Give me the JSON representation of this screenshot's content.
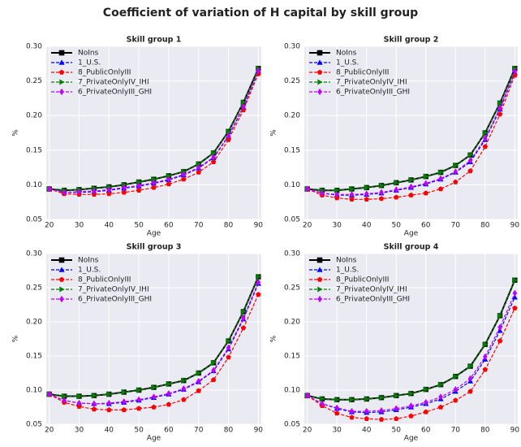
{
  "title": "Coefficient of variation of H capital by skill group",
  "chart_data": [
    {
      "type": "line",
      "title": "Skill group 1",
      "x_label": "Age",
      "y_label": "%",
      "x": [
        20,
        25,
        30,
        35,
        40,
        45,
        50,
        55,
        60,
        65,
        70,
        75,
        80,
        85,
        90
      ],
      "xlim": [
        19,
        91
      ],
      "xticks": [
        20,
        30,
        40,
        50,
        60,
        70,
        80,
        90
      ],
      "ylim": [
        0.05,
        0.3
      ],
      "yticks": [
        0.05,
        {
          "value": 0.1,
          "label": "0.10"
        },
        0.15,
        {
          "value": 0.2,
          "label": "0.20"
        },
        0.25,
        {
          "value": 0.3,
          "label": "0.30"
        }
      ],
      "grid": true,
      "legend": "upper left",
      "series": [
        {
          "name": "NoIns",
          "color": "#000000",
          "marker": "square",
          "linestyle": "solid",
          "values": [
            0.094,
            0.092,
            0.093,
            0.095,
            0.097,
            0.1,
            0.104,
            0.108,
            0.113,
            0.119,
            0.13,
            0.146,
            0.177,
            0.219,
            0.268
          ]
        },
        {
          "name": "1_U.S.",
          "color": "#0000ff",
          "marker": "triangle-up",
          "linestyle": "dashed",
          "values": [
            0.094,
            0.089,
            0.089,
            0.09,
            0.092,
            0.095,
            0.098,
            0.102,
            0.107,
            0.114,
            0.124,
            0.139,
            0.17,
            0.212,
            0.264
          ]
        },
        {
          "name": "8_PublicOnlyIII",
          "color": "#ff0000",
          "marker": "pentagon",
          "linestyle": "dashed",
          "values": [
            0.094,
            0.087,
            0.086,
            0.086,
            0.087,
            0.089,
            0.092,
            0.096,
            0.101,
            0.108,
            0.118,
            0.133,
            0.165,
            0.208,
            0.26
          ]
        },
        {
          "name": "7_PrivateOnlyIV_IHI",
          "color": "#008000",
          "marker": "triangle-right",
          "linestyle": "dashed",
          "values": [
            0.094,
            0.092,
            0.093,
            0.095,
            0.097,
            0.1,
            0.104,
            0.108,
            0.113,
            0.119,
            0.13,
            0.146,
            0.177,
            0.219,
            0.268
          ]
        },
        {
          "name": "6_PrivateOnlyIII_GHI",
          "color": "#bf00ff",
          "marker": "diamond",
          "linestyle": "dashed",
          "values": [
            0.094,
            0.089,
            0.09,
            0.091,
            0.093,
            0.096,
            0.099,
            0.103,
            0.108,
            0.115,
            0.125,
            0.14,
            0.171,
            0.213,
            0.265
          ]
        }
      ]
    },
    {
      "type": "line",
      "title": "Skill group 2",
      "x_label": "Age",
      "y_label": "%",
      "x": [
        20,
        25,
        30,
        35,
        40,
        45,
        50,
        55,
        60,
        65,
        70,
        75,
        80,
        85,
        90
      ],
      "xlim": [
        19,
        91
      ],
      "xticks": [
        20,
        30,
        40,
        50,
        60,
        70,
        80,
        90
      ],
      "ylim": [
        0.05,
        0.3
      ],
      "yticks": [
        0.05,
        {
          "value": 0.1,
          "label": "0.10"
        },
        0.15,
        {
          "value": 0.2,
          "label": "0.20"
        },
        0.25,
        {
          "value": 0.3,
          "label": "0.30"
        }
      ],
      "grid": true,
      "legend": "upper left",
      "series": [
        {
          "name": "NoIns",
          "color": "#000000",
          "marker": "square",
          "linestyle": "solid",
          "values": [
            0.094,
            0.092,
            0.092,
            0.094,
            0.096,
            0.099,
            0.103,
            0.107,
            0.112,
            0.118,
            0.128,
            0.143,
            0.175,
            0.218,
            0.268
          ]
        },
        {
          "name": "1_U.S.",
          "color": "#0000ff",
          "marker": "triangle-up",
          "linestyle": "dashed",
          "values": [
            0.094,
            0.088,
            0.085,
            0.085,
            0.086,
            0.088,
            0.092,
            0.096,
            0.101,
            0.108,
            0.118,
            0.133,
            0.165,
            0.209,
            0.262
          ]
        },
        {
          "name": "8_PublicOnlyIII",
          "color": "#ff0000",
          "marker": "pentagon",
          "linestyle": "dashed",
          "values": [
            0.094,
            0.085,
            0.081,
            0.079,
            0.079,
            0.08,
            0.082,
            0.085,
            0.088,
            0.094,
            0.104,
            0.12,
            0.155,
            0.202,
            0.258
          ]
        },
        {
          "name": "7_PrivateOnlyIV_IHI",
          "color": "#008000",
          "marker": "triangle-right",
          "linestyle": "dashed",
          "values": [
            0.094,
            0.092,
            0.092,
            0.094,
            0.096,
            0.099,
            0.103,
            0.107,
            0.112,
            0.118,
            0.128,
            0.143,
            0.175,
            0.218,
            0.268
          ]
        },
        {
          "name": "6_PrivateOnlyIII_GHI",
          "color": "#bf00ff",
          "marker": "diamond",
          "linestyle": "dashed",
          "values": [
            0.094,
            0.088,
            0.086,
            0.086,
            0.087,
            0.089,
            0.093,
            0.097,
            0.102,
            0.109,
            0.119,
            0.135,
            0.167,
            0.211,
            0.264
          ]
        }
      ]
    },
    {
      "type": "line",
      "title": "Skill group 3",
      "x_label": "Age",
      "y_label": "%",
      "x": [
        20,
        25,
        30,
        35,
        40,
        45,
        50,
        55,
        60,
        65,
        70,
        75,
        80,
        85,
        90
      ],
      "xlim": [
        19,
        91
      ],
      "xticks": [
        20,
        30,
        40,
        50,
        60,
        70,
        80,
        90
      ],
      "ylim": [
        0.05,
        0.3
      ],
      "yticks": [
        0.05,
        {
          "value": 0.1,
          "label": "0.10"
        },
        0.15,
        {
          "value": 0.2,
          "label": "0.20"
        },
        0.25,
        {
          "value": 0.3,
          "label": "0.30"
        }
      ],
      "grid": true,
      "legend": "upper left",
      "series": [
        {
          "name": "NoIns",
          "color": "#000000",
          "marker": "square",
          "linestyle": "solid",
          "values": [
            0.094,
            0.091,
            0.091,
            0.092,
            0.094,
            0.097,
            0.1,
            0.104,
            0.109,
            0.114,
            0.125,
            0.14,
            0.172,
            0.215,
            0.266
          ]
        },
        {
          "name": "1_U.S.",
          "color": "#0000ff",
          "marker": "triangle-up",
          "linestyle": "dashed",
          "values": [
            0.094,
            0.085,
            0.081,
            0.08,
            0.08,
            0.082,
            0.085,
            0.089,
            0.094,
            0.101,
            0.112,
            0.128,
            0.16,
            0.204,
            0.256
          ]
        },
        {
          "name": "8_PublicOnlyIII",
          "color": "#ff0000",
          "marker": "pentagon",
          "linestyle": "dashed",
          "values": [
            0.094,
            0.082,
            0.076,
            0.072,
            0.071,
            0.071,
            0.073,
            0.075,
            0.079,
            0.086,
            0.099,
            0.115,
            0.148,
            0.191,
            0.24
          ]
        },
        {
          "name": "7_PrivateOnlyIV_IHI",
          "color": "#008000",
          "marker": "triangle-right",
          "linestyle": "dashed",
          "values": [
            0.094,
            0.091,
            0.091,
            0.092,
            0.094,
            0.097,
            0.1,
            0.104,
            0.109,
            0.114,
            0.125,
            0.14,
            0.172,
            0.215,
            0.266
          ]
        },
        {
          "name": "6_PrivateOnlyIII_GHI",
          "color": "#bf00ff",
          "marker": "diamond",
          "linestyle": "dashed",
          "values": [
            0.094,
            0.085,
            0.081,
            0.08,
            0.081,
            0.083,
            0.086,
            0.09,
            0.095,
            0.102,
            0.113,
            0.129,
            0.162,
            0.206,
            0.258
          ]
        }
      ]
    },
    {
      "type": "line",
      "title": "Skill group 4",
      "x_label": "Age",
      "y_label": "%",
      "x": [
        20,
        25,
        30,
        35,
        40,
        45,
        50,
        55,
        60,
        65,
        70,
        75,
        80,
        85,
        90
      ],
      "xlim": [
        19,
        91
      ],
      "xticks": [
        20,
        30,
        40,
        50,
        60,
        70,
        80,
        90
      ],
      "ylim": [
        0.05,
        0.3
      ],
      "yticks": [
        0.05,
        {
          "value": 0.1,
          "label": "0.10"
        },
        0.15,
        {
          "value": 0.2,
          "label": "0.20"
        },
        0.25,
        {
          "value": 0.3,
          "label": "0.30"
        }
      ],
      "grid": true,
      "legend": "upper left",
      "series": [
        {
          "name": "NoIns",
          "color": "#000000",
          "marker": "square",
          "linestyle": "solid",
          "values": [
            0.092,
            0.087,
            0.086,
            0.086,
            0.087,
            0.089,
            0.092,
            0.095,
            0.101,
            0.108,
            0.12,
            0.135,
            0.167,
            0.209,
            0.261
          ]
        },
        {
          "name": "1_U.S.",
          "color": "#0000ff",
          "marker": "triangle-up",
          "linestyle": "dashed",
          "values": [
            0.092,
            0.08,
            0.073,
            0.068,
            0.067,
            0.068,
            0.071,
            0.075,
            0.08,
            0.087,
            0.098,
            0.113,
            0.145,
            0.187,
            0.236
          ]
        },
        {
          "name": "8_PublicOnlyIII",
          "color": "#ff0000",
          "marker": "pentagon",
          "linestyle": "dashed",
          "values": [
            0.092,
            0.077,
            0.066,
            0.06,
            0.058,
            0.057,
            0.058,
            0.062,
            0.068,
            0.075,
            0.085,
            0.098,
            0.13,
            0.172,
            0.22
          ]
        },
        {
          "name": "7_PrivateOnlyIV_IHI",
          "color": "#008000",
          "marker": "triangle-right",
          "linestyle": "dashed",
          "values": [
            0.092,
            0.087,
            0.086,
            0.086,
            0.087,
            0.089,
            0.092,
            0.095,
            0.101,
            0.108,
            0.12,
            0.135,
            0.167,
            0.209,
            0.261
          ]
        },
        {
          "name": "6_PrivateOnlyIII_GHI",
          "color": "#bf00ff",
          "marker": "diamond",
          "linestyle": "dashed",
          "values": [
            0.092,
            0.08,
            0.074,
            0.069,
            0.069,
            0.07,
            0.073,
            0.077,
            0.082,
            0.09,
            0.101,
            0.117,
            0.149,
            0.192,
            0.242
          ]
        }
      ]
    }
  ]
}
